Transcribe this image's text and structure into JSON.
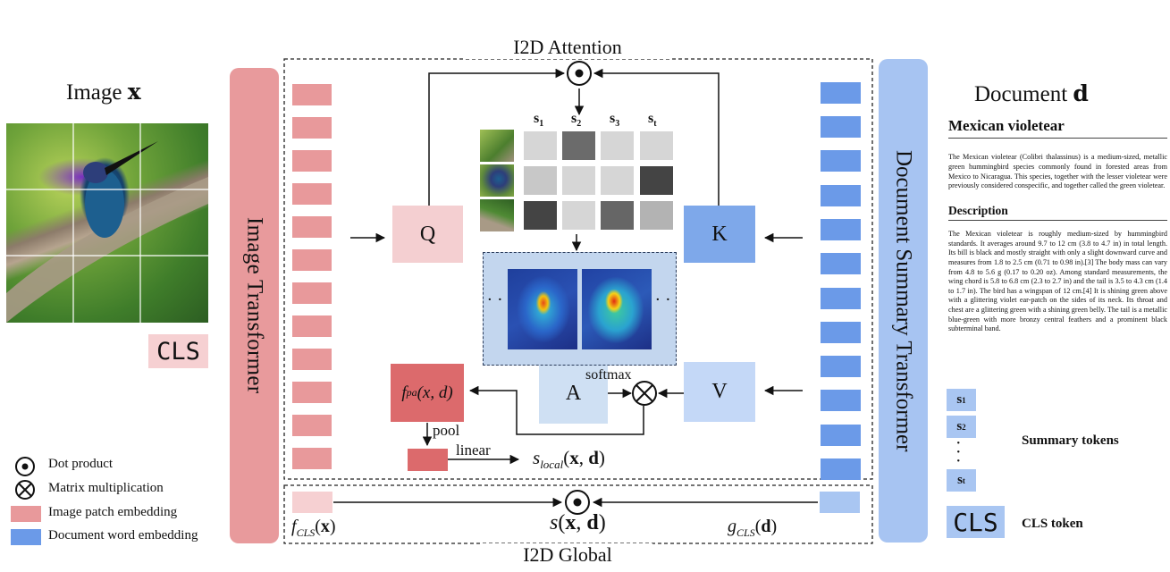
{
  "image_panel": {
    "title_prefix": "Image",
    "title_var": "x",
    "cls_label": "CLS"
  },
  "image_transformer": {
    "label": "Image Transformer"
  },
  "attention": {
    "title": "I2D Attention",
    "q_label": "Q",
    "k_label": "K",
    "v_label": "V",
    "a_label": "A",
    "summary_headers": [
      "s",
      "s",
      "s",
      "s"
    ],
    "summary_subs": [
      "1",
      "2",
      "3",
      "t"
    ],
    "softmax_label": "softmax",
    "fpa_func": "f",
    "fpa_sub": "pa",
    "fpa_args": "(x, d)",
    "pool_label": "pool",
    "linear_label": "linear",
    "s_local_func": "s",
    "s_local_sub": "local",
    "s_local_args": "(x, d)",
    "grid_shades": [
      [
        "#d6d6d6",
        "#6b6b6b",
        "#d6d6d6",
        "#d6d6d6"
      ],
      [
        "#c8c8c8",
        "#d6d6d6",
        "#d6d6d6",
        "#444444"
      ],
      [
        "#444444",
        "#d6d6d6",
        "#666666",
        "#b3b3b3"
      ]
    ]
  },
  "global": {
    "title": "I2D Global",
    "f_cls_func": "f",
    "f_cls_sub": "CLS",
    "f_cls_args": "(x)",
    "s_func": "s",
    "s_args": "(x, d)",
    "g_cls_func": "g",
    "g_cls_sub": "CLS",
    "g_cls_args": "(d)"
  },
  "doc_transformer": {
    "label": "Document Summary Transformer"
  },
  "document": {
    "title_prefix": "Document",
    "title_var": "d",
    "heading": "Mexican violetear",
    "intro": "The Mexican violetear (Colibri thalassinus) is a medium-sized, metallic green hummingbird species commonly found in forested areas from Mexico to Nicaragua. This species, together with the lesser violetear were previously considered conspecific, and together called the green violetear.",
    "section_heading": "Description",
    "description": "The Mexican violetear is roughly medium-sized by hummingbird standards. It averages around 9.7 to 12 cm (3.8 to 4.7 in) in total length. Its bill is black and mostly straight with only a slight downward curve and measures from 1.8 to 2.5 cm (0.71 to 0.98 in).[3] The body mass can vary from 4.8 to 5.6 g (0.17 to 0.20 oz). Among standard measurements, the wing chord is 5.8 to 6.8 cm (2.3 to 2.7 in) and the tail is 3.5 to 4.3 cm (1.4 to 1.7 in). The bird has a wingspan of 12 cm.[4] It is shining green above with a glittering violet ear-patch on the sides of its neck. Its throat and chest are a glittering green with a shining green belly. The tail is a metallic blue-green with more bronzy central feathers and a prominent black subterminal band.",
    "summary_token_label": "Summary tokens",
    "summary_tokens": [
      "s",
      "s",
      "s"
    ],
    "summary_token_subs": [
      "1",
      "2",
      "t"
    ],
    "summary_dots": "·\n·\n·",
    "cls_token": "CLS",
    "cls_token_label": "CLS token"
  },
  "legend": [
    {
      "icon": "dot",
      "label": "Dot product"
    },
    {
      "icon": "cross",
      "label": "Matrix multiplication"
    },
    {
      "icon": "pink",
      "label": "Image patch embedding"
    },
    {
      "icon": "blue",
      "label": "Document word embedding"
    }
  ],
  "colors": {
    "image_embed": "#e8999b",
    "doc_embed": "#6b9ae8",
    "image_transformer": "#e89a9c",
    "doc_transformer": "#a7c4f2",
    "q_box": "#f4cfd1",
    "k_box": "#7ea8ea",
    "v_box": "#c4d8f7",
    "a_box": "#cfe0f3",
    "fpa_box": "#dc6a6c",
    "pool_box": "#dc6a6c",
    "cls_image": "#f6d0d2",
    "cls_doc": "#a9c6f2",
    "token_bg": "#a9c6f2"
  }
}
